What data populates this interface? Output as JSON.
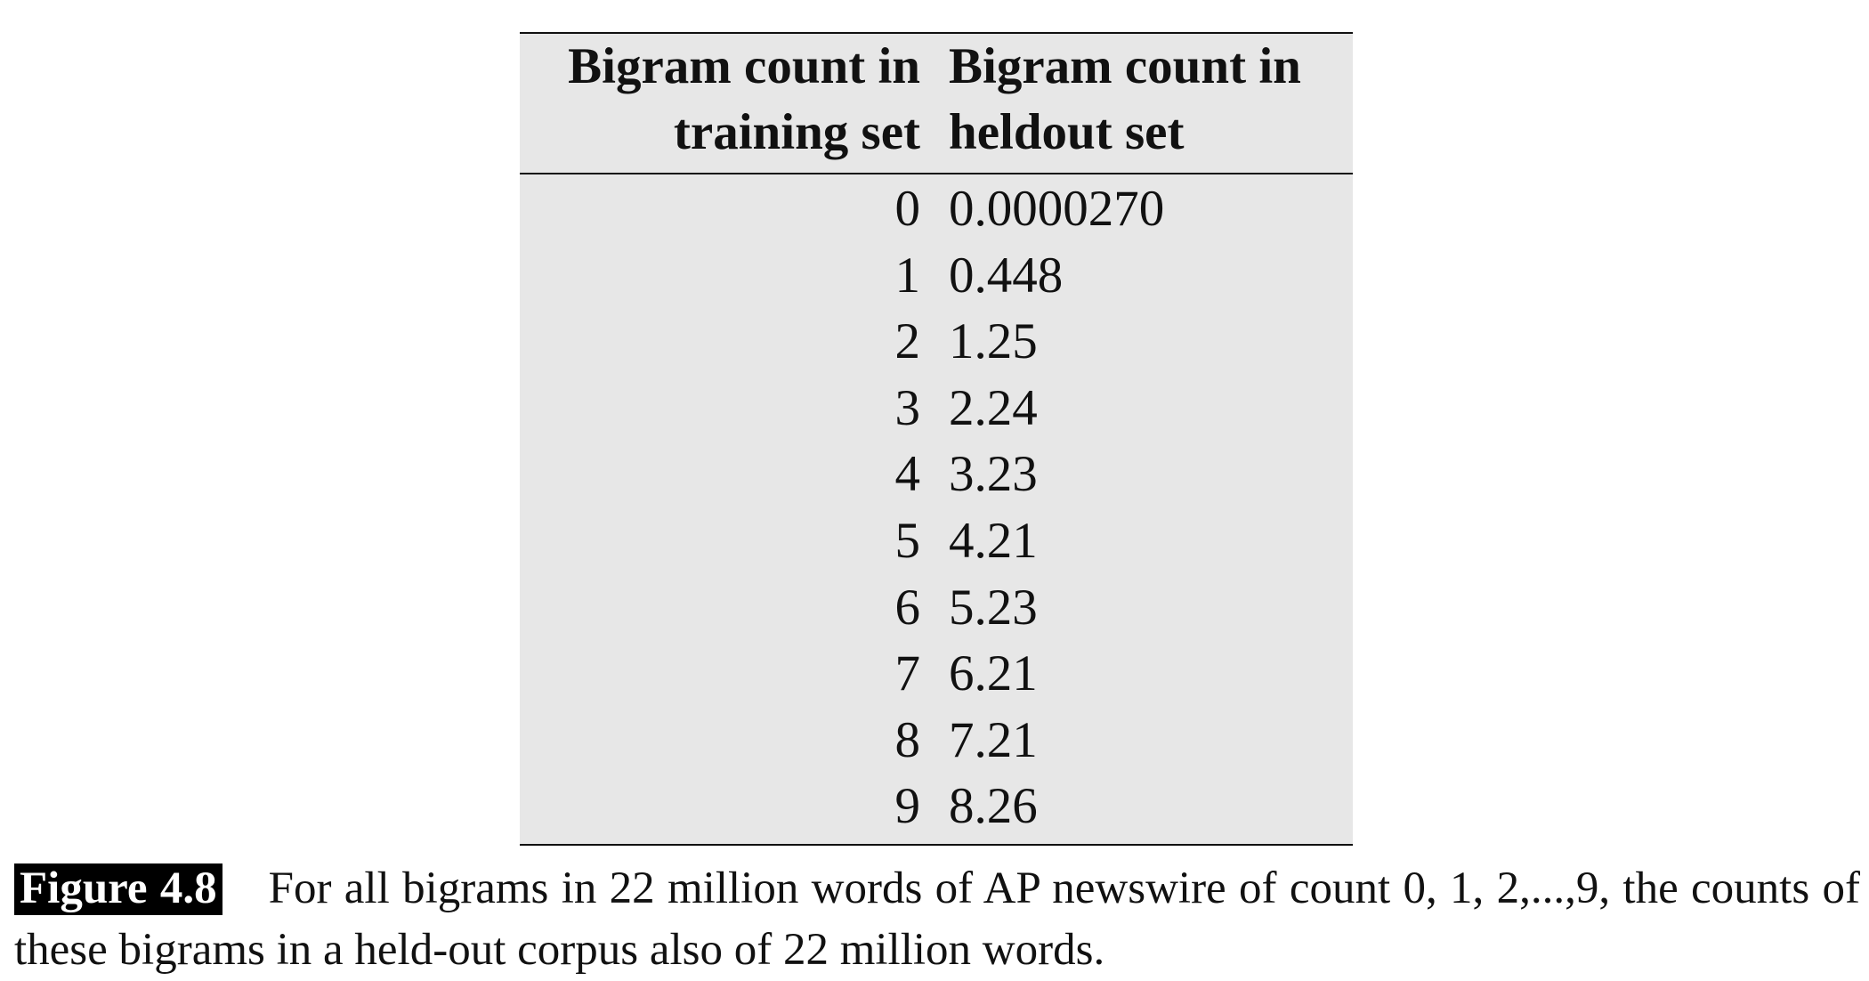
{
  "table": {
    "headers": {
      "training_line1": "Bigram count in",
      "training_line2": "training set",
      "heldout_line1": "Bigram count in",
      "heldout_line2": "heldout set"
    },
    "rows": [
      {
        "training": "0",
        "heldout": "0.0000270"
      },
      {
        "training": "1",
        "heldout": "0.448"
      },
      {
        "training": "2",
        "heldout": "1.25"
      },
      {
        "training": "3",
        "heldout": "2.24"
      },
      {
        "training": "4",
        "heldout": "3.23"
      },
      {
        "training": "5",
        "heldout": "4.21"
      },
      {
        "training": "6",
        "heldout": "5.23"
      },
      {
        "training": "7",
        "heldout": "6.21"
      },
      {
        "training": "8",
        "heldout": "7.21"
      },
      {
        "training": "9",
        "heldout": "8.26"
      }
    ]
  },
  "caption": {
    "label": "Figure 4.8",
    "text": "For all bigrams in 22 million words of AP newswire of count 0, 1, 2,...,9, the counts of these bigrams in a held-out corpus also of 22 million words."
  }
}
